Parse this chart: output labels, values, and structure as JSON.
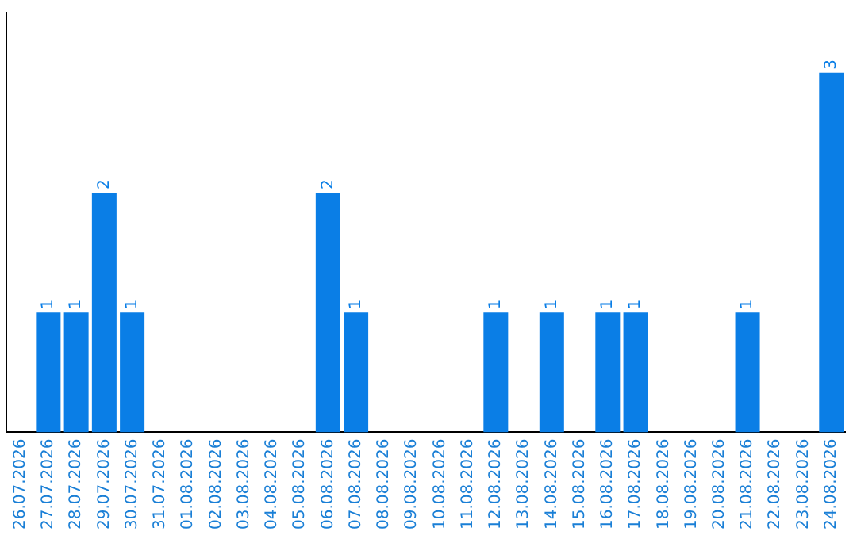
{
  "chart_data": {
    "type": "bar",
    "categories": [
      "26.07.2026",
      "27.07.2026",
      "28.07.2026",
      "29.07.2026",
      "30.07.2026",
      "31.07.2026",
      "01.08.2026",
      "02.08.2026",
      "03.08.2026",
      "04.08.2026",
      "05.08.2026",
      "06.08.2026",
      "07.08.2026",
      "08.08.2026",
      "09.08.2026",
      "10.08.2026",
      "11.08.2026",
      "12.08.2026",
      "13.08.2026",
      "14.08.2026",
      "15.08.2026",
      "16.08.2026",
      "17.08.2026",
      "18.08.2026",
      "19.08.2026",
      "20.08.2026",
      "21.08.2026",
      "22.08.2026",
      "23.08.2026",
      "24.08.2026"
    ],
    "values": [
      0,
      1,
      1,
      2,
      1,
      0,
      0,
      0,
      0,
      0,
      0,
      2,
      1,
      0,
      0,
      0,
      0,
      1,
      0,
      1,
      0,
      1,
      1,
      0,
      0,
      0,
      1,
      0,
      0,
      3
    ],
    "value_labels": [
      null,
      "1",
      "1",
      "2",
      "1",
      null,
      null,
      null,
      null,
      null,
      null,
      "2",
      "1",
      null,
      null,
      null,
      null,
      "1",
      null,
      "1",
      null,
      "1",
      "1",
      null,
      null,
      null,
      "1",
      null,
      null,
      "3"
    ],
    "color": "#0a7ee6",
    "grid": false,
    "legend": false,
    "tick_labels": "x"
  }
}
